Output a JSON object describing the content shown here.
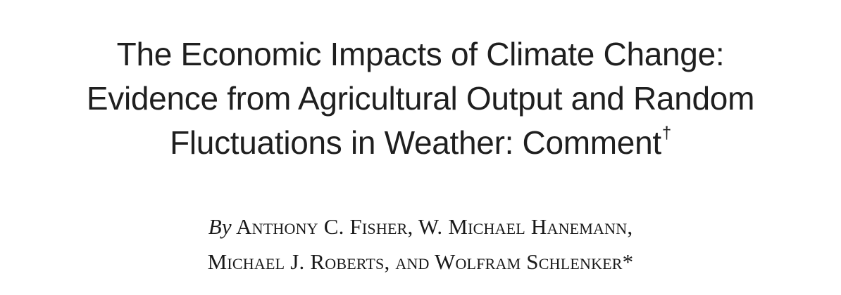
{
  "article": {
    "title_lines": [
      "The Economic Impacts of Climate Change:",
      "Evidence from Agricultural Output and Random",
      "Fluctuations in Weather: Comment"
    ],
    "title_footnote_mark": "†",
    "by_label": "By",
    "author_lines": [
      "Anthony C. Fisher, W. Michael Hanemann,",
      "Michael J. Roberts, and Wolfram Schlenker*"
    ]
  }
}
